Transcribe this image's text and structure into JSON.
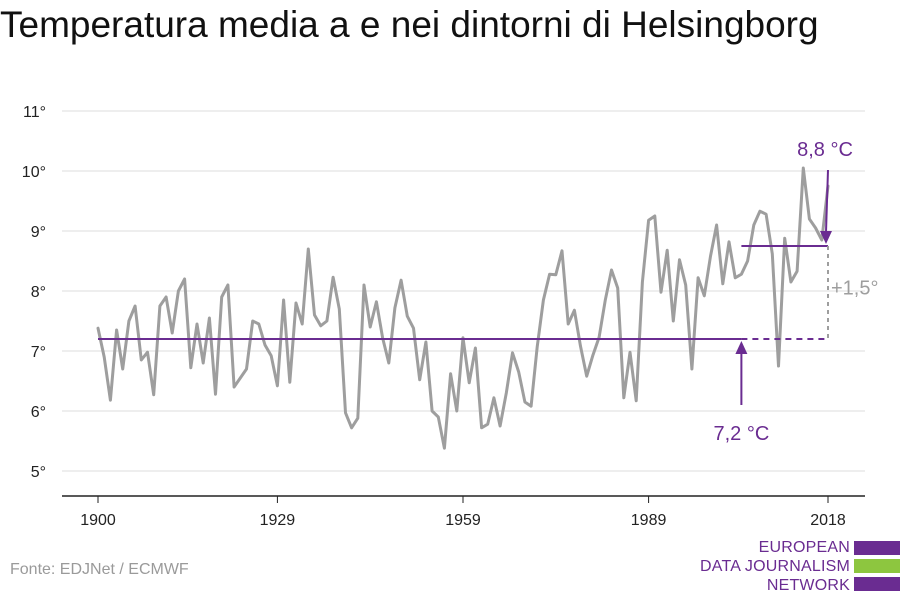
{
  "title": "Temperatura media a e nei dintorni di Helsingborg",
  "source": "Fonte: EDJNet / ECMWF",
  "logo": {
    "lines": [
      "EUROPEAN",
      "DATA JOURNALISM",
      "NETWORK"
    ],
    "colors": [
      "#6a2c91",
      "#8dc63f",
      "#6a2c91"
    ]
  },
  "colors": {
    "series": "#9e9e9e",
    "accent": "#6a2c91",
    "axis": "#222222",
    "grid": "#dddddd",
    "diff": "#9e9e9e"
  },
  "chart_data": {
    "type": "line",
    "xlim": [
      1900,
      2018
    ],
    "ylim": [
      5,
      11
    ],
    "x_ticks": [
      {
        "value": 1900,
        "label": "1900"
      },
      {
        "value": 1929,
        "label": "1929"
      },
      {
        "value": 1959,
        "label": "1959"
      },
      {
        "value": 1989,
        "label": "1989"
      },
      {
        "value": 2018,
        "label": "2018"
      }
    ],
    "y_ticks": [
      {
        "value": 5,
        "label": "5°"
      },
      {
        "value": 6,
        "label": "6°"
      },
      {
        "value": 7,
        "label": "7°"
      },
      {
        "value": 8,
        "label": "8°"
      },
      {
        "value": 9,
        "label": "9°"
      },
      {
        "value": 10,
        "label": "10°"
      },
      {
        "value": 11,
        "label": "11°"
      }
    ],
    "grid": true,
    "series": [
      {
        "x": [
          1900,
          1901,
          1902,
          1903,
          1904,
          1905,
          1906,
          1907,
          1908,
          1909,
          1910,
          1911,
          1912,
          1913,
          1914,
          1915,
          1916,
          1917,
          1918,
          1919,
          1920,
          1921,
          1922,
          1923,
          1924,
          1925,
          1926,
          1927,
          1928,
          1929,
          1930,
          1931,
          1932,
          1933,
          1934,
          1935,
          1936,
          1937,
          1938,
          1939,
          1940,
          1941,
          1942,
          1943,
          1944,
          1945,
          1946,
          1947,
          1948,
          1949,
          1950,
          1951,
          1952,
          1953,
          1954,
          1955,
          1956,
          1957,
          1958,
          1959,
          1960,
          1961,
          1962,
          1963,
          1964,
          1965,
          1966,
          1967,
          1968,
          1969,
          1970,
          1971,
          1972,
          1973,
          1974,
          1975,
          1976,
          1977,
          1978,
          1979,
          1980,
          1981,
          1982,
          1983,
          1984,
          1985,
          1986,
          1987,
          1988,
          1989,
          1990,
          1991,
          1992,
          1993,
          1994,
          1995,
          1996,
          1997,
          1998,
          1999,
          2000,
          2001,
          2002,
          2003,
          2004,
          2005,
          2006,
          2007,
          2008,
          2009,
          2010,
          2011,
          2012,
          2013,
          2014,
          2015,
          2016,
          2017,
          2018
        ],
        "values": [
          7.38,
          6.9,
          6.18,
          7.35,
          6.7,
          7.5,
          7.75,
          6.85,
          6.98,
          6.27,
          7.75,
          7.9,
          7.3,
          8.0,
          8.2,
          6.72,
          7.45,
          6.8,
          7.55,
          6.28,
          7.9,
          8.1,
          6.4,
          6.55,
          6.7,
          7.5,
          7.45,
          7.1,
          6.92,
          6.42,
          7.85,
          6.48,
          7.8,
          7.45,
          8.7,
          7.6,
          7.42,
          7.5,
          8.23,
          7.7,
          5.97,
          5.72,
          5.88,
          8.1,
          7.4,
          7.82,
          7.22,
          6.8,
          7.72,
          8.18,
          7.58,
          7.38,
          6.52,
          7.15,
          6.0,
          5.9,
          5.38,
          6.62,
          6.0,
          7.22,
          6.47,
          7.05,
          5.72,
          5.78,
          6.22,
          5.75,
          6.3,
          6.97,
          6.65,
          6.15,
          6.08,
          7.07,
          7.85,
          8.28,
          8.27,
          8.67,
          7.45,
          7.68,
          7.08,
          6.58,
          6.93,
          7.23,
          7.85,
          8.35,
          8.05,
          6.22,
          6.98,
          6.17,
          8.15,
          9.18,
          9.25,
          7.98,
          8.68,
          7.5,
          8.52,
          8.1,
          6.7,
          8.22,
          7.92,
          8.58,
          9.1,
          8.12,
          8.82,
          8.22,
          8.28,
          8.5,
          9.1,
          9.33,
          9.28,
          8.62,
          6.75,
          8.88,
          8.15,
          8.33,
          10.05,
          9.2,
          9.05,
          8.85,
          9.75
        ]
      }
    ],
    "annotations": {
      "baseline": {
        "value": 7.2,
        "label": "7,2 °C",
        "x_start": 1900,
        "x_end": 2004,
        "x_dashed_end": 2018,
        "label_x": 2004
      },
      "recent": {
        "value": 8.75,
        "label": "8,8 °C",
        "x_start": 2004,
        "x_end": 2018,
        "label_x": 2018
      },
      "difference": {
        "label": "+1,5°",
        "x": 2018
      }
    }
  }
}
